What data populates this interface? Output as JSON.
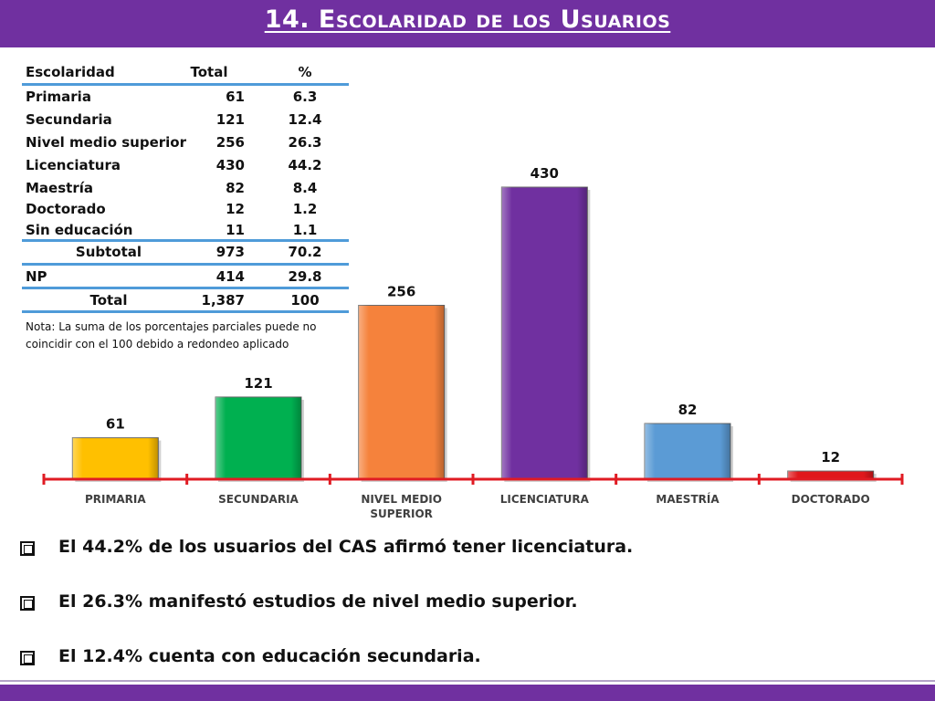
{
  "slide": {
    "title": "14. Escolaridad de los Usuarios"
  },
  "table": {
    "headers": [
      "Escolaridad",
      "Total",
      "%"
    ],
    "rows": [
      {
        "label": "Primaria",
        "total": "61",
        "pct": "6.3"
      },
      {
        "label": "Secundaria",
        "total": "121",
        "pct": "12.4"
      },
      {
        "label": "Nivel medio superior",
        "total": "256",
        "pct": "26.3"
      },
      {
        "label": "Licenciatura",
        "total": "430",
        "pct": "44.2"
      },
      {
        "label": "Maestría",
        "total": "82",
        "pct": "8.4"
      },
      {
        "label": "Doctorado",
        "total": "12",
        "pct": "1.2"
      },
      {
        "label": "Sin educación",
        "total": "11",
        "pct": "1.1"
      }
    ],
    "subtotal": {
      "label": "Subtotal",
      "total": "973",
      "pct": "70.2"
    },
    "np": {
      "label": "NP",
      "total": "414",
      "pct": "29.8"
    },
    "total": {
      "label": "Total",
      "total": "1,387",
      "pct": "100"
    },
    "note": "Nota: La suma de los porcentajes parciales puede no coincidir con el 100 debido a redondeo aplicado"
  },
  "chart_data": {
    "type": "bar",
    "categories": [
      "PRIMARIA",
      "SECUNDARIA",
      "NIVEL MEDIO SUPERIOR",
      "LICENCIATURA",
      "MAESTRÍA",
      "DOCTORADO"
    ],
    "category_lines": [
      [
        "PRIMARIA"
      ],
      [
        "SECUNDARIA"
      ],
      [
        "NIVEL MEDIO",
        "SUPERIOR"
      ],
      [
        "LICENCIATURA"
      ],
      [
        "MAESTRÍA"
      ],
      [
        "DOCTORADO"
      ]
    ],
    "values": [
      61,
      121,
      256,
      430,
      82,
      12
    ],
    "data_labels": [
      "61",
      "121",
      "256",
      "430",
      "82",
      "12"
    ],
    "colors": [
      "#ffc000",
      "#00b050",
      "#f5823c",
      "#7030a0",
      "#5b9bd5",
      "#e0181c"
    ],
    "axis_color": "#e01b23",
    "ylim": [
      0,
      430
    ],
    "grid": false,
    "legend": "none",
    "title": "",
    "xlabel": "",
    "ylabel": ""
  },
  "bullets": [
    "El 44.2% de los usuarios del CAS afirmó tener licenciatura.",
    "El 26.3% manifestó estudios de nivel medio superior.",
    "El 12.4% cuenta con educación secundaria."
  ],
  "icons": {
    "bullet": "checkbox-square-icon"
  }
}
